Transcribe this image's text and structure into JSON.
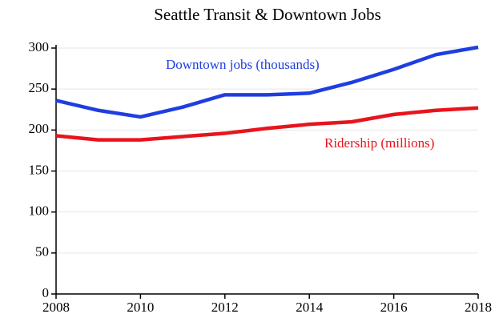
{
  "chart_data": {
    "type": "line",
    "title": "Seattle Transit & Downtown Jobs",
    "x": [
      2008,
      2009,
      2010,
      2011,
      2012,
      2013,
      2014,
      2015,
      2016,
      2017,
      2018
    ],
    "series": [
      {
        "name": "Downtown jobs (thousands)",
        "color": "#1f3ee0",
        "values": [
          236,
          224,
          216,
          228,
          243,
          243,
          245,
          258,
          274,
          292,
          301
        ]
      },
      {
        "name": "Ridership (millions)",
        "color": "#e8141c",
        "values": [
          193,
          188,
          188,
          192,
          196,
          202,
          207,
          210,
          219,
          224,
          227
        ]
      }
    ],
    "xlim": [
      2008,
      2018
    ],
    "xticks": [
      2008,
      2010,
      2012,
      2014,
      2016,
      2018
    ],
    "ylim": [
      0,
      300
    ],
    "yticks": [
      0,
      50,
      100,
      150,
      200,
      250,
      300
    ],
    "grid": true
  }
}
